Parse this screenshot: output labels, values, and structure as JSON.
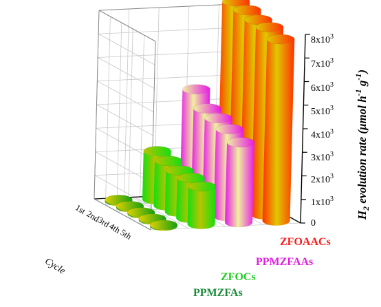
{
  "chart_data": {
    "type": "bar3d",
    "title": "",
    "ylabel": "H2 evolution rate (μmol h-1 g-1)",
    "xlabel": "Cycle",
    "categories": [
      "1st",
      "2nd",
      "3rd",
      "4th",
      "5th"
    ],
    "ylim": [
      0,
      8000
    ],
    "ytick_labels": [
      "0",
      "1x10³",
      "2x10³",
      "3x10³",
      "4x10³",
      "5x10³",
      "6x10³",
      "7x10³",
      "8x10³"
    ],
    "series": [
      {
        "name": "PPMZFAs",
        "values": [
          60,
          55,
          50,
          45,
          40
        ],
        "colors": [
          "#12a010",
          "#e0d000"
        ]
      },
      {
        "name": "ZFOCs",
        "values": [
          2050,
          1900,
          1750,
          1700,
          1600
        ],
        "colors": [
          "#10e010",
          "#b8c400"
        ]
      },
      {
        "name": "PPMZFAAs",
        "values": [
          4600,
          4050,
          3900,
          3700,
          3400
        ],
        "colors": [
          "#e818e8",
          "#f0f0a0"
        ]
      },
      {
        "name": "ZFOAACs",
        "values": [
          8250,
          8150,
          8000,
          7950,
          7700
        ],
        "colors": [
          "#ff3000",
          "#e0c800"
        ]
      }
    ],
    "grid": true,
    "legend_position": "bottom-right"
  }
}
